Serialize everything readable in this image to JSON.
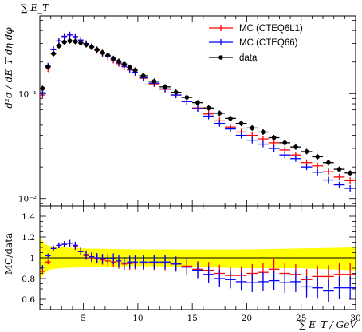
{
  "chart_data": [
    {
      "type": "scatter",
      "title": "∑ E_T",
      "xlabel": "",
      "ylabel": "d²σ / dE_T dη dφ",
      "log_y": true,
      "xlim": [
        1,
        30
      ],
      "ylim": [
        0.0085,
        0.55
      ],
      "y_ticks": [
        {
          "value": 0.01,
          "label": "10⁻²"
        },
        {
          "value": 0.1,
          "label": "10⁻¹"
        }
      ],
      "x": [
        1.25,
        1.75,
        2.25,
        2.75,
        3.25,
        3.75,
        4.25,
        4.75,
        5.25,
        5.75,
        6.25,
        6.75,
        7.25,
        7.75,
        8.25,
        8.75,
        9.25,
        9.75,
        10.5,
        11.5,
        12.5,
        13.5,
        14.5,
        15.5,
        16.5,
        17.5,
        18.5,
        19.5,
        20.5,
        21.5,
        22.5,
        23.5,
        24.5,
        25.5,
        26.5,
        27.5,
        28.5,
        29.5
      ],
      "series": [
        {
          "name": "MC (CTEQ6L1)",
          "color": "#ff0000",
          "values": [
            0.097,
            0.172,
            0.262,
            0.318,
            0.352,
            0.362,
            0.348,
            0.322,
            0.298,
            0.278,
            0.258,
            0.24,
            0.224,
            0.208,
            0.193,
            0.18,
            0.168,
            0.158,
            0.14,
            0.124,
            0.11,
            0.097,
            0.084,
            0.073,
            0.064,
            0.055,
            0.048,
            0.043,
            0.04,
            0.037,
            0.034,
            0.029,
            0.026,
            0.022,
            0.0205,
            0.018,
            0.016,
            0.0148
          ]
        },
        {
          "name": "MC (CTEQ66)",
          "color": "#0000ff",
          "values": [
            0.102,
            0.183,
            0.262,
            0.318,
            0.35,
            0.362,
            0.35,
            0.324,
            0.3,
            0.28,
            0.262,
            0.243,
            0.228,
            0.213,
            0.197,
            0.182,
            0.17,
            0.16,
            0.142,
            0.126,
            0.111,
            0.097,
            0.084,
            0.072,
            0.061,
            0.052,
            0.046,
            0.04,
            0.036,
            0.033,
            0.03,
            0.026,
            0.024,
            0.02,
            0.0178,
            0.015,
            0.0135,
            0.0125
          ]
        },
        {
          "name": "data",
          "color": "#000000",
          "values": [
            0.112,
            0.18,
            0.24,
            0.285,
            0.31,
            0.318,
            0.314,
            0.305,
            0.292,
            0.278,
            0.262,
            0.246,
            0.231,
            0.216,
            0.203,
            0.191,
            0.178,
            0.167,
            0.148,
            0.131,
            0.116,
            0.103,
            0.092,
            0.082,
            0.073,
            0.065,
            0.058,
            0.052,
            0.047,
            0.043,
            0.038,
            0.034,
            0.031,
            0.028,
            0.025,
            0.022,
            0.019,
            0.0175
          ]
        }
      ],
      "legend": "top-right"
    },
    {
      "type": "scatter",
      "xlabel": "∑ E_T / GeV",
      "ylabel": "MC/data",
      "xlim": [
        1,
        30
      ],
      "ylim": [
        0.5,
        1.5
      ],
      "x_ticks": [
        5,
        10,
        15,
        20,
        25,
        30
      ],
      "y_ticks": [
        0.6,
        0.8,
        1.0,
        1.2,
        1.4
      ],
      "y_tick_labels": [
        "0.6",
        "0.8",
        "1",
        "1.2",
        "1.4"
      ],
      "reference_line": 1.0,
      "band_color": "#ffff00",
      "band": {
        "x": [
          1.0,
          1.5,
          2.0,
          3.0,
          5.0,
          10.0,
          15.0,
          20.0,
          25.0,
          30.0
        ],
        "low": [
          0.79,
          0.86,
          0.89,
          0.9,
          0.91,
          0.92,
          0.91,
          0.9,
          0.9,
          0.88
        ],
        "high": [
          1.2,
          1.13,
          1.11,
          1.1,
          1.09,
          1.08,
          1.08,
          1.08,
          1.09,
          1.1
        ]
      },
      "x": [
        1.25,
        1.75,
        2.25,
        2.75,
        3.25,
        3.75,
        4.25,
        4.75,
        5.25,
        5.75,
        6.25,
        6.75,
        7.25,
        7.75,
        8.25,
        8.75,
        9.25,
        9.75,
        10.5,
        11.5,
        12.5,
        13.5,
        14.5,
        15.5,
        16.5,
        17.5,
        18.5,
        19.5,
        20.5,
        21.5,
        22.5,
        23.5,
        24.5,
        25.5,
        26.5,
        27.5,
        28.5,
        29.5
      ],
      "series": [
        {
          "name": "MC (CTEQ6L1)",
          "color": "#ff0000",
          "values": [
            0.87,
            0.96,
            1.09,
            1.12,
            1.13,
            1.14,
            1.11,
            1.06,
            1.02,
            1.0,
            0.99,
            0.98,
            0.97,
            0.96,
            0.95,
            0.94,
            0.945,
            0.95,
            0.95,
            0.95,
            0.95,
            0.94,
            0.92,
            0.89,
            0.88,
            0.85,
            0.83,
            0.83,
            0.85,
            0.86,
            0.89,
            0.85,
            0.84,
            0.79,
            0.82,
            0.82,
            0.84,
            0.84
          ]
        },
        {
          "name": "MC (CTEQ66)",
          "color": "#0000ff",
          "values": [
            0.91,
            1.02,
            1.09,
            1.12,
            1.13,
            1.14,
            1.12,
            1.06,
            1.03,
            1.01,
            1.0,
            0.99,
            0.99,
            0.99,
            0.97,
            0.95,
            0.96,
            0.96,
            0.96,
            0.96,
            0.96,
            0.94,
            0.91,
            0.88,
            0.84,
            0.8,
            0.79,
            0.77,
            0.76,
            0.77,
            0.78,
            0.76,
            0.77,
            0.72,
            0.71,
            0.68,
            0.71,
            0.71
          ]
        }
      ]
    }
  ]
}
